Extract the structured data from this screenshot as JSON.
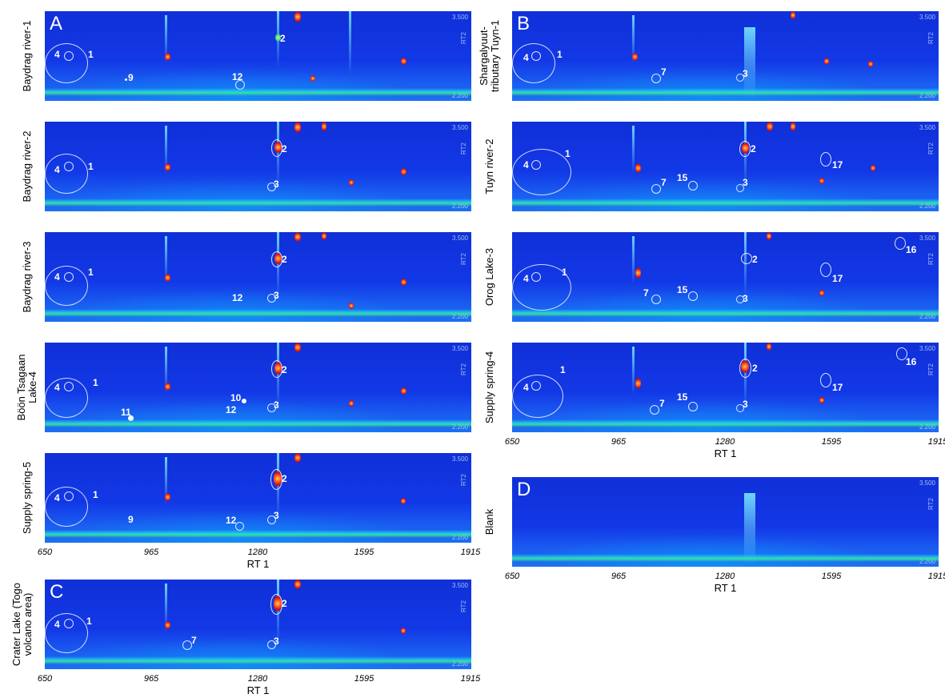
{
  "panels": [
    {
      "key": "baydrag1",
      "letter": "A",
      "side": "Baydrag river-1",
      "rings": [
        [
          "4",
          "1"
        ]
      ],
      "labels": [
        "2",
        "9",
        "12"
      ]
    },
    {
      "key": "baydrag2",
      "letter": "",
      "side": "Baydrag river-2",
      "rings": [
        [
          "4",
          "1"
        ]
      ],
      "labels": [
        "2",
        "3"
      ]
    },
    {
      "key": "baydrag3",
      "letter": "",
      "side": "Baydrag river-3",
      "rings": [
        [
          "4",
          "1"
        ]
      ],
      "labels": [
        "2",
        "12",
        "3"
      ]
    },
    {
      "key": "boontsagaan",
      "letter": "",
      "side": "Böön Tsagaan Lake-4",
      "rings": [
        [
          "4",
          "1"
        ]
      ],
      "labels": [
        "2",
        "10",
        "11",
        "12",
        "3"
      ]
    },
    {
      "key": "supply5",
      "letter": "",
      "side": "Supply spring-5",
      "rings": [
        [
          "4",
          "1"
        ]
      ],
      "labels": [
        "2",
        "9",
        "12",
        "3"
      ]
    },
    {
      "key": "crater",
      "letter": "C",
      "side": "Crater Lake (Togo volcano area)",
      "rings": [
        [
          "4",
          "1"
        ]
      ],
      "labels": [
        "2",
        "7",
        "3"
      ]
    },
    {
      "key": "shargal",
      "letter": "B",
      "side": "Shargalyuut-tributary Tuyn-1",
      "rings": [
        [
          "4",
          "1"
        ]
      ],
      "labels": [
        "7",
        "3"
      ]
    },
    {
      "key": "tuyn2",
      "letter": "",
      "side": "Tuyn river-2",
      "rings": [
        [
          "4",
          "1"
        ]
      ],
      "labels": [
        "2",
        "17",
        "7",
        "15",
        "3"
      ]
    },
    {
      "key": "orog3",
      "letter": "",
      "side": "Orog Lake-3",
      "rings": [
        [
          "4",
          "1"
        ]
      ],
      "labels": [
        "16",
        "2",
        "17",
        "7",
        "15",
        "3"
      ]
    },
    {
      "key": "supply4",
      "letter": "",
      "side": "Supply spring-4",
      "rings": [
        [
          "4",
          "1"
        ]
      ],
      "labels": [
        "16",
        "2",
        "17",
        "7",
        "15",
        "3"
      ]
    },
    {
      "key": "blank",
      "letter": "D",
      "side": "Blank",
      "rings": [],
      "labels": []
    }
  ],
  "scale": {
    "hi": "3.500",
    "lo": "2.200",
    "rt2": "RT2"
  },
  "axis": {
    "ticks": [
      "650",
      "965",
      "1280",
      "1595",
      "1915"
    ],
    "title": "RT 1"
  },
  "colors": {
    "bg_top": "#1030d8",
    "hot": "#ff3a1a",
    "warm": "#40e080",
    "cool": "#28b8f0"
  }
}
